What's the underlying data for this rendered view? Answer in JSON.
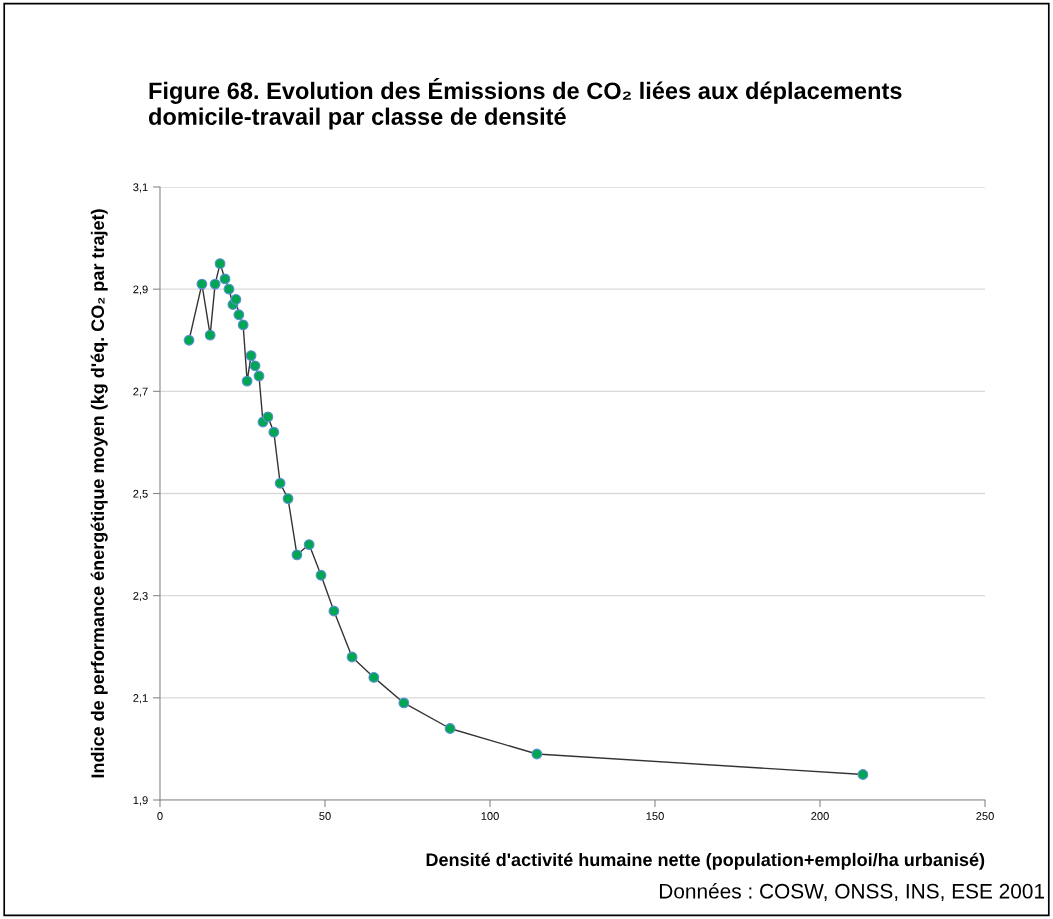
{
  "chart_data": {
    "type": "line",
    "title": "Figure 68. Evolution des Émissions de CO₂ liées aux déplacements domicile-travail par classe de densité",
    "xlabel": "Densité d'activité humaine nette (population+emploi/ha urbanisé)",
    "ylabel": "Indice de performance énergétique moyen (kg d'éq. CO₂ par trajet)",
    "annotations": [
      "Données : COSW, ONSS, INS, ESE 2001"
    ],
    "x": [
      8.8,
      12.7,
      15.2,
      16.7,
      18.2,
      19.7,
      20.9,
      22.1,
      23.0,
      23.9,
      25.2,
      26.4,
      27.6,
      28.8,
      30.0,
      31.2,
      32.7,
      34.5,
      36.4,
      38.8,
      41.5,
      45.2,
      48.8,
      52.7,
      58.2,
      64.8,
      73.9,
      87.9,
      114.2,
      213.0
    ],
    "series": [
      {
        "color": "#00a651",
        "values": [
          2.8,
          2.91,
          2.81,
          2.91,
          2.95,
          2.92,
          2.9,
          2.87,
          2.88,
          2.85,
          2.83,
          2.72,
          2.77,
          2.75,
          2.73,
          2.64,
          2.65,
          2.62,
          2.52,
          2.49,
          2.38,
          2.4,
          2.34,
          2.27,
          2.18,
          2.14,
          2.09,
          2.04,
          1.99,
          1.95
        ]
      }
    ],
    "xlim": [
      0,
      250
    ],
    "xticks": [
      0,
      50,
      100,
      150,
      200,
      250
    ],
    "ylim": [
      1.9,
      3.1
    ],
    "yticks": [
      {
        "value": 1.9,
        "label": "1,9"
      },
      {
        "value": 2.1,
        "label": "2,1"
      },
      {
        "value": 2.3,
        "label": "2,3"
      },
      {
        "value": 2.5,
        "label": "2,5"
      },
      {
        "value": 2.7,
        "label": "2,7"
      },
      {
        "value": 2.9,
        "label": "2,9"
      },
      {
        "value": 3.1,
        "label": "3,1"
      }
    ],
    "grid": "y",
    "marker": "circle",
    "line_style": "solid"
  }
}
